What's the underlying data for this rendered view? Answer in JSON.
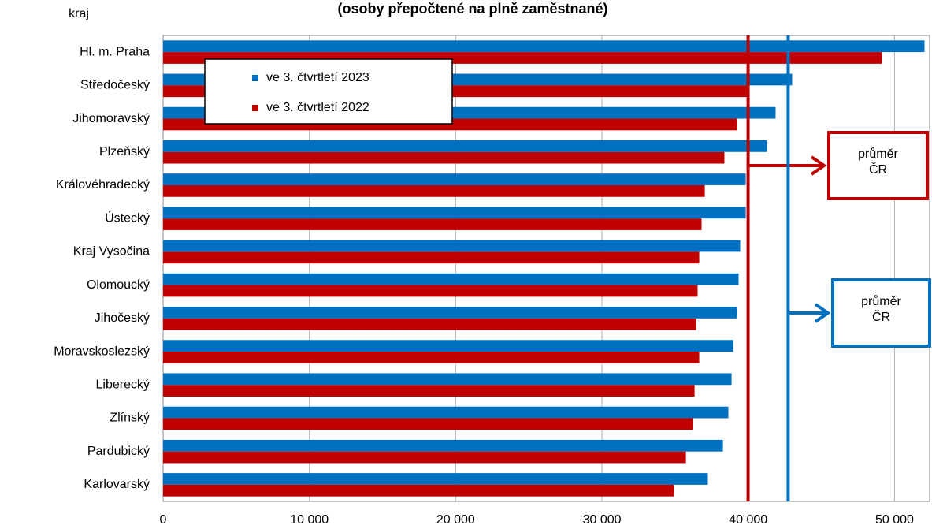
{
  "chart_data": {
    "type": "barh",
    "subtitle": "(osoby  přepočtené na plně zaměstnané)",
    "y_label": "kraj",
    "categories": [
      "Hl. m. Praha",
      "Středočeský",
      "Jihomoravský",
      "Plzeňský",
      "Královéhradecký",
      "Ústecký",
      "Kraj Vysočina",
      "Olomoucký",
      "Jihočeský",
      "Moravskoslezský",
      "Liberecký",
      "Zlínský",
      "Pardubický",
      "Karlovarský"
    ],
    "series": [
      {
        "name": "ve 3. čtvrtletí 2023",
        "color": "#0070c0",
        "values": [
          52050,
          43000,
          41870,
          41280,
          39830,
          39830,
          39450,
          39340,
          39240,
          38970,
          38860,
          38640,
          38270,
          37240
        ]
      },
      {
        "name": "ve 3. čtvrtletí 2022",
        "color": "#c00000",
        "values": [
          49140,
          39900,
          39240,
          38370,
          37030,
          36810,
          36650,
          36540,
          36440,
          36650,
          36330,
          36220,
          35740,
          34930
        ]
      }
    ],
    "xlim": [
      0,
      52400
    ],
    "xticks": [
      0,
      {
        "value": 10000,
        "label": "10 000"
      },
      {
        "value": 20000,
        "label": "20 000"
      },
      {
        "value": 30000,
        "label": "30 000"
      },
      {
        "value": 40000,
        "label": "40 000"
      },
      {
        "value": 50000,
        "label": "50 000"
      }
    ],
    "grid": true,
    "reference_lines": [
      {
        "text": [
          "průměr",
          "ČR"
        ],
        "value": 39990,
        "color": "#c00000"
      },
      {
        "text": [
          "průměr",
          "ČR"
        ],
        "value": 42730,
        "color": "#0070c0"
      }
    ]
  }
}
